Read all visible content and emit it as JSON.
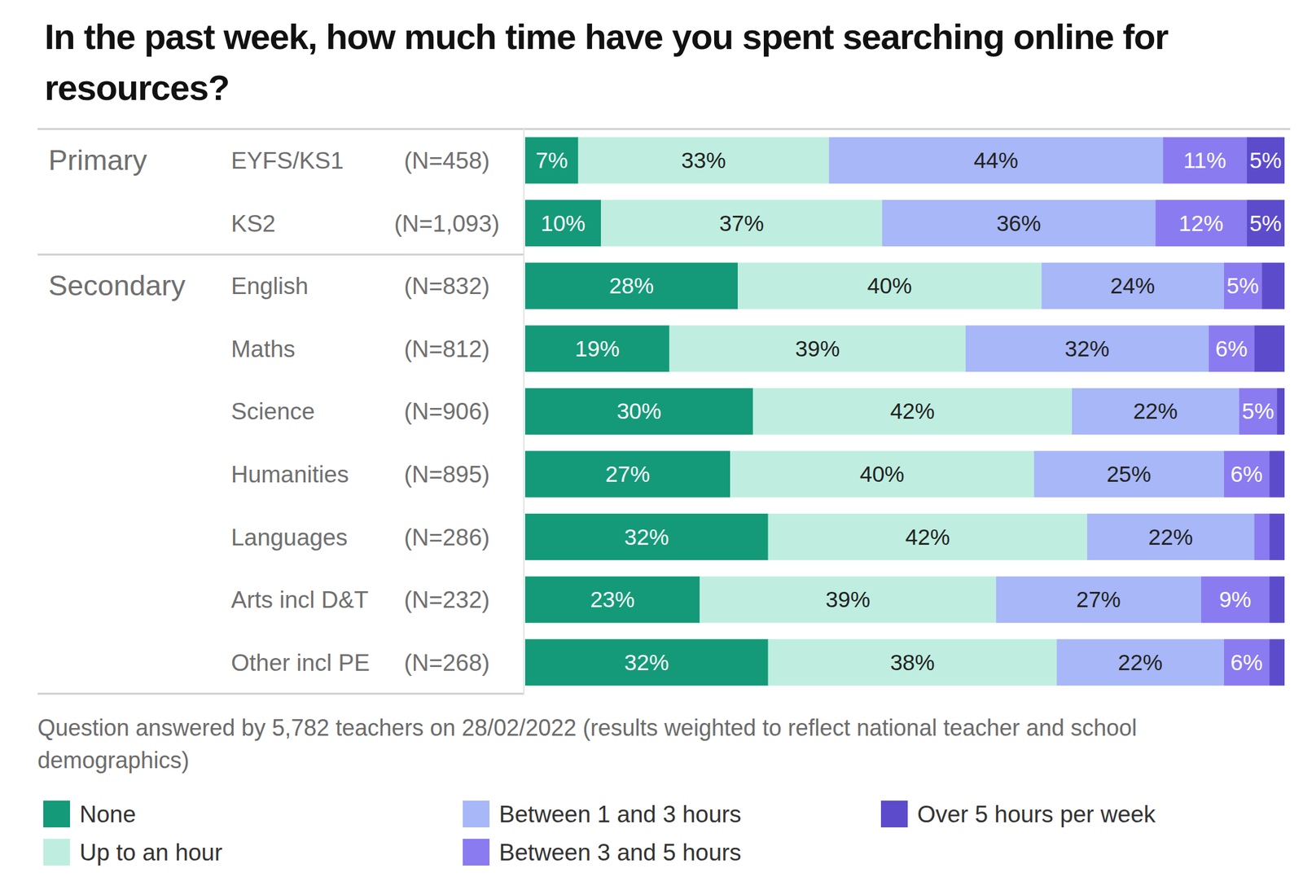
{
  "chart_data": {
    "type": "bar",
    "orientation": "horizontal",
    "stacked": true,
    "data_labels": true,
    "tick_labels": "y",
    "legend": "bottom",
    "title": "In the past week, how much time have you spent searching online for resources?",
    "note": "Question answered by 5,782 teachers on 28/02/2022 (results weighted to reflect national teacher and school demographics)",
    "categories": [
      "EYFS/KS1",
      "KS2",
      "English",
      "Maths",
      "Science",
      "Humanities",
      "Languages",
      "Arts incl D&T",
      "Other incl PE"
    ],
    "group_labels": [
      "Primary",
      null,
      "Secondary",
      null,
      null,
      null,
      null,
      null,
      null
    ],
    "n_labels": [
      "(N=458)",
      "(N=1,093)",
      "(N=832)",
      "(N=812)",
      "(N=906)",
      "(N=895)",
      "(N=286)",
      "(N=232)",
      "(N=268)"
    ],
    "xlim": [
      0,
      100
    ],
    "series": [
      {
        "name": "None",
        "color": "#149a78",
        "values": [
          7,
          10,
          28,
          19,
          30,
          27,
          32,
          23,
          32
        ],
        "value_labels": [
          "7%",
          "10%",
          "28%",
          "19%",
          "30%",
          "27%",
          "32%",
          "23%",
          "32%"
        ]
      },
      {
        "name": "Up to an hour",
        "color": "#bfeee0",
        "values": [
          33,
          37,
          40,
          39,
          42,
          40,
          42,
          39,
          38
        ],
        "value_labels": [
          "33%",
          "37%",
          "40%",
          "39%",
          "42%",
          "40%",
          "42%",
          "39%",
          "38%"
        ]
      },
      {
        "name": "Between 1 and 3 hours",
        "color": "#a7b7f7",
        "values": [
          44,
          36,
          24,
          32,
          22,
          25,
          22,
          27,
          22
        ],
        "value_labels": [
          "44%",
          "36%",
          "24%",
          "32%",
          "22%",
          "25%",
          "22%",
          "27%",
          "22%"
        ]
      },
      {
        "name": "Between 3 and 5 hours",
        "color": "#8a7bf0",
        "values": [
          11,
          12,
          5,
          6,
          5,
          6,
          2,
          9,
          6
        ],
        "value_labels": [
          "11%",
          "12%",
          "5%",
          "6%",
          "5%",
          "6%",
          null,
          "9%",
          "6%"
        ]
      },
      {
        "name": "Over 5 hours per week",
        "color": "#5c4ccb",
        "values": [
          5,
          5,
          3,
          4,
          1,
          2,
          2,
          2,
          2
        ],
        "value_labels": [
          "5%",
          "5%",
          null,
          null,
          null,
          null,
          null,
          null,
          null
        ]
      }
    ]
  }
}
